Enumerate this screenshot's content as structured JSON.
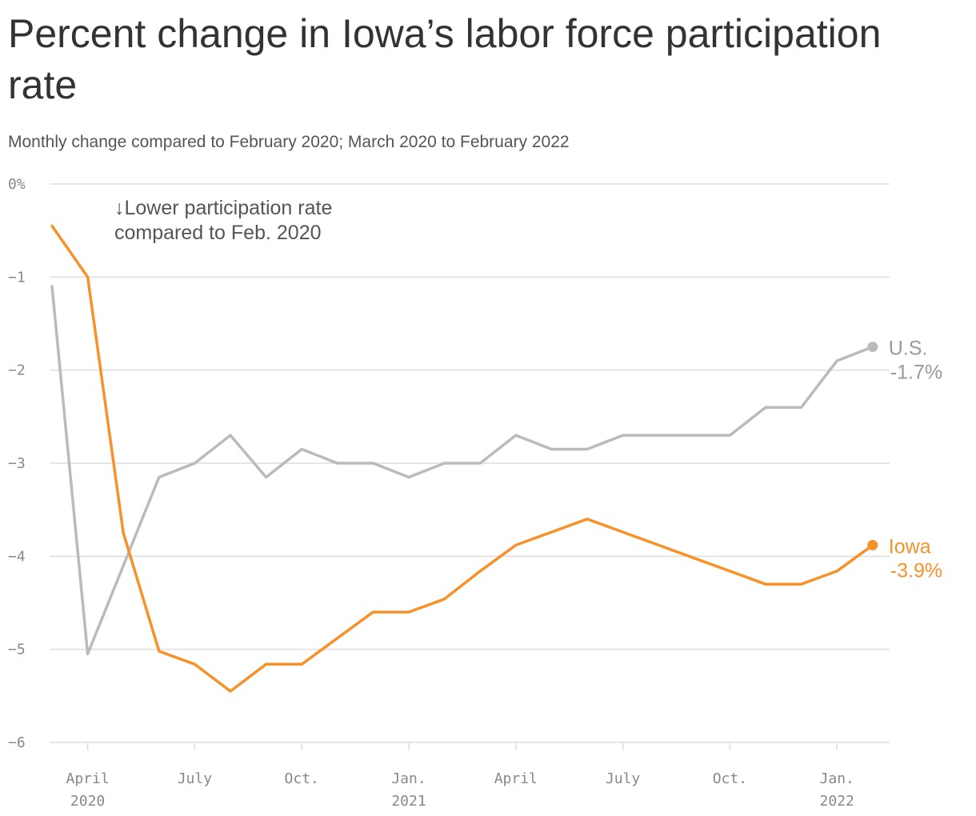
{
  "chart_data": {
    "type": "line",
    "title": "Percent change in Iowa’s labor force participation rate",
    "subtitle": "Monthly change compared to February 2020; March 2020 to February 2022",
    "y_ticks": [
      {
        "value": 0,
        "label": "0%"
      },
      {
        "value": -1,
        "label": "−1"
      },
      {
        "value": -2,
        "label": "−2"
      },
      {
        "value": -3,
        "label": "−3"
      },
      {
        "value": -4,
        "label": "−4"
      },
      {
        "value": -5,
        "label": "−5"
      },
      {
        "value": -6,
        "label": "−6"
      }
    ],
    "ylim": [
      -6,
      0
    ],
    "x_ticks": [
      {
        "index": 1,
        "line1": "April",
        "line2": "2020"
      },
      {
        "index": 4,
        "line1": "July",
        "line2": ""
      },
      {
        "index": 7,
        "line1": "Oct.",
        "line2": ""
      },
      {
        "index": 10,
        "line1": "Jan.",
        "line2": "2021"
      },
      {
        "index": 13,
        "line1": "April",
        "line2": ""
      },
      {
        "index": 16,
        "line1": "July",
        "line2": ""
      },
      {
        "index": 19,
        "line1": "Oct.",
        "line2": ""
      },
      {
        "index": 22,
        "line1": "Jan.",
        "line2": "2022"
      }
    ],
    "x": [
      "2020-03",
      "2020-04",
      "2020-05",
      "2020-06",
      "2020-07",
      "2020-08",
      "2020-09",
      "2020-10",
      "2020-11",
      "2020-12",
      "2021-01",
      "2021-02",
      "2021-03",
      "2021-04",
      "2021-05",
      "2021-06",
      "2021-07",
      "2021-08",
      "2021-09",
      "2021-10",
      "2021-11",
      "2021-12",
      "2022-01",
      "2022-02"
    ],
    "annotation": {
      "line1": "↓Lower participation rate",
      "line2": "compared to Feb. 2020"
    },
    "grid": true,
    "series": [
      {
        "name": "U.S.",
        "end_label": "-1.7%",
        "color": "#bbbbbb",
        "values": [
          -1.1,
          -5.05,
          -4.1,
          -3.15,
          -3.0,
          -2.7,
          -3.15,
          -2.85,
          -3.0,
          -3.0,
          -3.15,
          -3.0,
          -3.0,
          -2.7,
          -2.85,
          -2.85,
          -2.7,
          -2.7,
          -2.7,
          -2.7,
          -2.4,
          -2.4,
          -1.9,
          -1.75
        ]
      },
      {
        "name": "Iowa",
        "end_label": "-3.9%",
        "color": "#f7922b",
        "values": [
          -0.45,
          -1.0,
          -3.75,
          -5.02,
          -5.16,
          -5.45,
          -5.16,
          -5.16,
          -4.88,
          -4.6,
          -4.6,
          -4.46,
          -4.16,
          -3.88,
          -3.74,
          -3.6,
          -3.74,
          -3.88,
          -4.02,
          -4.16,
          -4.3,
          -4.3,
          -4.16,
          -3.88
        ]
      }
    ]
  }
}
